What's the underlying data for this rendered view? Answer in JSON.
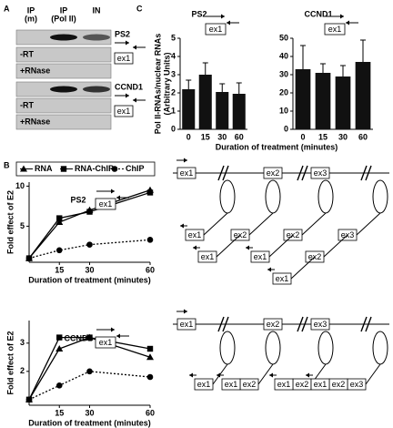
{
  "panel_labels": [
    "A",
    "B",
    "C"
  ],
  "gel": {
    "lanes": [
      [
        "IP",
        "(m)"
      ],
      [
        "IP",
        "(Pol II)"
      ],
      [
        "IN"
      ]
    ],
    "rows": [
      "-RT",
      "+RNase",
      "-RT",
      "+RNase"
    ],
    "genes": [
      {
        "name": "PS2",
        "exon": "ex1"
      },
      {
        "name": "CCND1",
        "exon": "ex1"
      }
    ]
  },
  "chart_data": [
    {
      "type": "bar",
      "title": "PS2",
      "exon": "ex1",
      "y_label": [
        "Pol II-RNAs/nuclear RNAs",
        "(Arbitrary Units)"
      ],
      "x_label": "Duration of treatment (minutes)",
      "categories": [
        "0",
        "15",
        "30",
        "60"
      ],
      "values": [
        2.2,
        3.0,
        2.05,
        1.95
      ],
      "errors": [
        0.5,
        0.65,
        0.45,
        0.6
      ],
      "color": "#111111",
      "ylim": [
        0,
        5
      ],
      "yticks": [
        0,
        1,
        2,
        3,
        4,
        5
      ]
    },
    {
      "type": "bar",
      "title": "CCND1",
      "exon": "ex1",
      "categories": [
        "0",
        "15",
        "30",
        "60"
      ],
      "values": [
        33,
        31,
        29,
        37
      ],
      "errors": [
        13,
        5,
        6,
        12
      ],
      "color": "#111111",
      "ylim": [
        0,
        50
      ],
      "yticks": [
        0,
        10,
        20,
        30,
        40,
        50
      ]
    },
    {
      "type": "line",
      "title": "PS2",
      "exon": "ex1",
      "y_label": "Fold effect of E2",
      "x_label": "Duration of treatment (minutes)",
      "legend": "top",
      "x": [
        0,
        15,
        30,
        60
      ],
      "xlim": [
        0,
        60
      ],
      "xticks": [
        15,
        30,
        60
      ],
      "ylim": [
        0.5,
        10.5
      ],
      "yticks": [
        5,
        10
      ],
      "series": [
        {
          "name": "RNA",
          "marker": "triangle",
          "dashed": false,
          "color": "#000000",
          "values": [
            1,
            5.5,
            7,
            9.5
          ]
        },
        {
          "name": "RNA-ChIP",
          "marker": "square",
          "dashed": false,
          "color": "#000000",
          "values": [
            1,
            6,
            6.8,
            9.2
          ]
        },
        {
          "name": "ChIP",
          "marker": "circle",
          "dashed": true,
          "color": "#000000",
          "values": [
            1,
            2,
            2.7,
            3.3
          ]
        }
      ]
    },
    {
      "type": "line",
      "title": "CCND1",
      "exon": "ex1",
      "y_label": "Fold effect of E2",
      "x_label": "Duration of treatment (minutes)",
      "x": [
        0,
        15,
        30,
        60
      ],
      "xlim": [
        0,
        60
      ],
      "xticks": [
        15,
        30,
        60
      ],
      "ylim": [
        0.8,
        3.8
      ],
      "yticks": [
        2,
        3
      ],
      "series": [
        {
          "marker": "triangle",
          "dashed": false,
          "color": "#000000",
          "values": [
            1,
            2.8,
            3.2,
            2.5
          ]
        },
        {
          "marker": "square",
          "dashed": false,
          "color": "#000000",
          "values": [
            1,
            3.2,
            3.2,
            2.8
          ]
        },
        {
          "marker": "circle",
          "dashed": true,
          "color": "#000000",
          "values": [
            1,
            1.5,
            2,
            1.8
          ]
        }
      ]
    }
  ],
  "diagrams": [
    {
      "gene": [
        "ex1",
        "ex2",
        "ex3"
      ],
      "spliced": false,
      "transcripts": [
        [
          "ex1"
        ],
        [
          "ex1",
          "ex2"
        ],
        [
          "ex1",
          "ex2"
        ],
        [
          "ex1",
          "ex2",
          "ex3"
        ]
      ]
    },
    {
      "gene": [
        "ex1",
        "ex2",
        "ex3"
      ],
      "spliced": true,
      "transcripts": [
        [
          "ex1"
        ],
        [
          "ex1",
          "ex2"
        ],
        [
          "ex1",
          "ex2"
        ],
        [
          "ex1",
          "ex2",
          "ex3"
        ]
      ]
    }
  ]
}
